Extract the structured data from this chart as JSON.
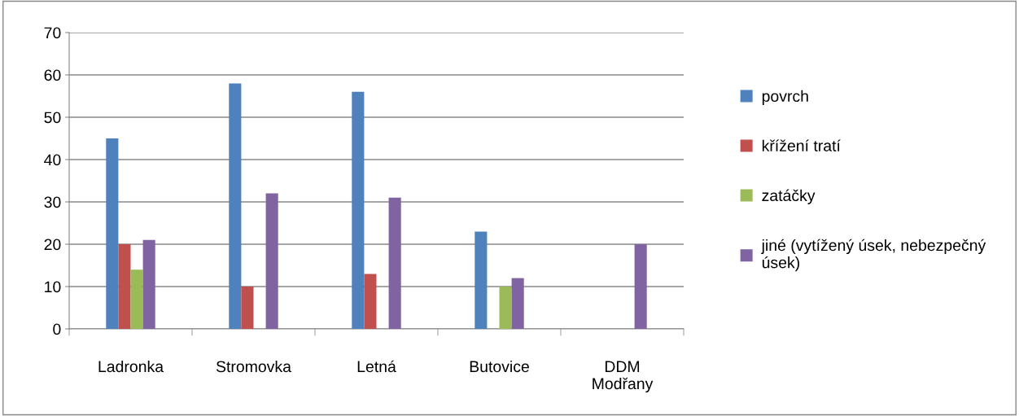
{
  "chart_data": {
    "type": "bar",
    "categories": [
      "Ladronka",
      "Stromovka",
      "Letná",
      "Butovice",
      "DDM Modřany"
    ],
    "series": [
      {
        "name": "povrch",
        "color": "#4f81bd",
        "values": [
          45,
          58,
          56,
          23,
          null
        ]
      },
      {
        "name": "křížení tratí",
        "color": "#c0504d",
        "values": [
          20,
          10,
          13,
          null,
          null
        ]
      },
      {
        "name": "zatáčky",
        "color": "#9bbb59",
        "values": [
          14,
          null,
          null,
          10,
          null
        ]
      },
      {
        "name": "jiné (vytížený úsek, nebezpečný úsek)",
        "color": "#8064a2",
        "values": [
          21,
          32,
          31,
          12,
          20
        ]
      }
    ],
    "ylim": [
      0,
      70
    ],
    "yticks": [
      0,
      10,
      20,
      30,
      40,
      50,
      60,
      70
    ],
    "grid": "y",
    "legend": "right"
  }
}
